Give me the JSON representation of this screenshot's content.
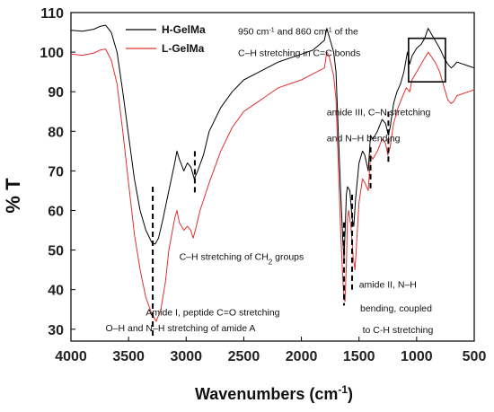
{
  "chart_data": {
    "type": "line",
    "xlabel_main": "Wavenumbers (cm",
    "xlabel_sup": "-1",
    "xlabel_end": ")",
    "ylabel": "% T",
    "xlim": [
      4000,
      500
    ],
    "ylim": [
      27,
      110
    ],
    "x_ticks": [
      4000,
      3500,
      3000,
      2500,
      2000,
      1500,
      1000,
      500
    ],
    "y_ticks": [
      30,
      40,
      50,
      60,
      70,
      80,
      90,
      100,
      110
    ],
    "legend_position": "top-left",
    "grid": false,
    "series": [
      {
        "name": "H-GelMa",
        "color": "#000000",
        "points": [
          [
            4000,
            105.5
          ],
          [
            3900,
            105.3
          ],
          [
            3800,
            105.8
          ],
          [
            3750,
            106.5
          ],
          [
            3700,
            106.8
          ],
          [
            3650,
            105
          ],
          [
            3600,
            100
          ],
          [
            3550,
            90
          ],
          [
            3500,
            79
          ],
          [
            3450,
            68
          ],
          [
            3400,
            60
          ],
          [
            3350,
            55
          ],
          [
            3300,
            52
          ],
          [
            3270,
            51.5
          ],
          [
            3240,
            53
          ],
          [
            3200,
            58
          ],
          [
            3150,
            65
          ],
          [
            3100,
            72
          ],
          [
            3080,
            75
          ],
          [
            3060,
            73
          ],
          [
            3020,
            70
          ],
          [
            2990,
            72
          ],
          [
            2960,
            71
          ],
          [
            2930,
            68
          ],
          [
            2900,
            70
          ],
          [
            2850,
            74
          ],
          [
            2800,
            80
          ],
          [
            2700,
            86
          ],
          [
            2600,
            90
          ],
          [
            2500,
            93
          ],
          [
            2400,
            94.5
          ],
          [
            2300,
            96
          ],
          [
            2200,
            97.5
          ],
          [
            2100,
            98.5
          ],
          [
            2000,
            99.5
          ],
          [
            1900,
            100.5
          ],
          [
            1800,
            103
          ],
          [
            1780,
            106
          ],
          [
            1760,
            104
          ],
          [
            1720,
            100
          ],
          [
            1700,
            95
          ],
          [
            1680,
            80
          ],
          [
            1660,
            65
          ],
          [
            1640,
            52
          ],
          [
            1630,
            48
          ],
          [
            1620,
            55
          ],
          [
            1610,
            64
          ],
          [
            1600,
            66
          ],
          [
            1580,
            65
          ],
          [
            1560,
            58
          ],
          [
            1545,
            56
          ],
          [
            1530,
            63
          ],
          [
            1500,
            72
          ],
          [
            1470,
            75
          ],
          [
            1450,
            74
          ],
          [
            1420,
            70
          ],
          [
            1400,
            79
          ],
          [
            1380,
            78
          ],
          [
            1340,
            80
          ],
          [
            1300,
            83
          ],
          [
            1270,
            82
          ],
          [
            1245,
            79
          ],
          [
            1230,
            81
          ],
          [
            1200,
            87
          ],
          [
            1170,
            90
          ],
          [
            1140,
            92
          ],
          [
            1110,
            95
          ],
          [
            1080,
            100
          ],
          [
            1060,
            97
          ],
          [
            1040,
            99
          ],
          [
            1000,
            101
          ],
          [
            960,
            102
          ],
          [
            930,
            103.5
          ],
          [
            900,
            106
          ],
          [
            870,
            104.5
          ],
          [
            840,
            103
          ],
          [
            800,
            101
          ],
          [
            760,
            98.5
          ],
          [
            730,
            97
          ],
          [
            700,
            96
          ],
          [
            680,
            96.5
          ],
          [
            650,
            97.5
          ],
          [
            600,
            97
          ],
          [
            550,
            96.5
          ],
          [
            500,
            96
          ]
        ]
      },
      {
        "name": "L-GelMa",
        "color": "#e03030",
        "points": [
          [
            4000,
            99.5
          ],
          [
            3900,
            99.2
          ],
          [
            3800,
            99.8
          ],
          [
            3750,
            100.5
          ],
          [
            3700,
            100.8
          ],
          [
            3650,
            98
          ],
          [
            3600,
            92
          ],
          [
            3550,
            80
          ],
          [
            3500,
            67
          ],
          [
            3450,
            54
          ],
          [
            3400,
            45
          ],
          [
            3350,
            38
          ],
          [
            3300,
            34
          ],
          [
            3260,
            32
          ],
          [
            3220,
            35
          ],
          [
            3180,
            42
          ],
          [
            3150,
            50
          ],
          [
            3100,
            58
          ],
          [
            3080,
            60
          ],
          [
            3060,
            57
          ],
          [
            3020,
            55
          ],
          [
            2990,
            56
          ],
          [
            2960,
            55
          ],
          [
            2940,
            53
          ],
          [
            2920,
            55
          ],
          [
            2880,
            60
          ],
          [
            2800,
            67
          ],
          [
            2700,
            75
          ],
          [
            2600,
            81
          ],
          [
            2500,
            85
          ],
          [
            2400,
            87
          ],
          [
            2300,
            89
          ],
          [
            2200,
            91
          ],
          [
            2100,
            92
          ],
          [
            2000,
            93
          ],
          [
            1900,
            94.5
          ],
          [
            1800,
            96
          ],
          [
            1780,
            100
          ],
          [
            1760,
            99
          ],
          [
            1720,
            94
          ],
          [
            1700,
            88
          ],
          [
            1680,
            72
          ],
          [
            1660,
            55
          ],
          [
            1640,
            42
          ],
          [
            1630,
            38
          ],
          [
            1622,
            37
          ],
          [
            1610,
            46
          ],
          [
            1600,
            58
          ],
          [
            1590,
            60
          ],
          [
            1570,
            56
          ],
          [
            1550,
            48
          ],
          [
            1535,
            45
          ],
          [
            1520,
            52
          ],
          [
            1500,
            62
          ],
          [
            1470,
            68
          ],
          [
            1450,
            67
          ],
          [
            1420,
            65
          ],
          [
            1400,
            74
          ],
          [
            1380,
            73
          ],
          [
            1340,
            75
          ],
          [
            1300,
            78
          ],
          [
            1270,
            77
          ],
          [
            1250,
            74
          ],
          [
            1230,
            76
          ],
          [
            1200,
            82
          ],
          [
            1160,
            86
          ],
          [
            1120,
            89
          ],
          [
            1090,
            91
          ],
          [
            1060,
            90
          ],
          [
            1040,
            93
          ],
          [
            1000,
            95
          ],
          [
            960,
            97
          ],
          [
            930,
            98.5
          ],
          [
            900,
            100
          ],
          [
            870,
            98.8
          ],
          [
            840,
            97.5
          ],
          [
            800,
            95
          ],
          [
            760,
            91
          ],
          [
            730,
            88
          ],
          [
            700,
            87
          ],
          [
            680,
            87.5
          ],
          [
            650,
            89
          ],
          [
            600,
            89.5
          ],
          [
            550,
            90
          ],
          [
            500,
            90.5
          ]
        ]
      }
    ],
    "markers": [
      {
        "x": 3290,
        "y1": 66,
        "y2": 28
      },
      {
        "x": 2925,
        "y1": 75,
        "y2": 64
      },
      {
        "x": 1630,
        "y1": 57,
        "y2": 36
      },
      {
        "x": 1560,
        "y1": 64,
        "y2": 40
      },
      {
        "x": 1245,
        "y1": 85,
        "y2": 72
      },
      {
        "x": 1400,
        "y1": 76,
        "y2": 65
      }
    ],
    "annotations": [
      {
        "text": "O–H and N–H stretching of amide A",
        "x": 3700,
        "y": 29.5
      },
      {
        "text": "C–H stretching of CH",
        "sub": "2",
        "text_after": " groups",
        "x": 3060,
        "y": 47.5
      },
      {
        "text": "Amide I, peptide C=O stretching",
        "x": 3350,
        "y": 33.5
      },
      {
        "text": "amide III, C–N stretching",
        "x": 1780,
        "y": 84
      },
      {
        "text": "and N–H bending",
        "x": 1780,
        "y": 77.5
      },
      {
        "text": "amide II, N–H",
        "x": 1500,
        "y": 40.5
      },
      {
        "text": "bending, coupled",
        "x": 1490,
        "y": 34.5
      },
      {
        "text": "to C-H stretching",
        "x": 1470,
        "y": 29
      }
    ],
    "top_annotation": {
      "line1_a": "950 cm",
      "line1_sup1": "-1",
      "line1_b": " and 860 cm",
      "line1_sup2": "-1",
      "line1_c": " of the",
      "line2": "C–H stretching in C=C bonds",
      "x": 2550,
      "y1": 104.5,
      "y2": 99
    },
    "highlight_box": {
      "x_from": 1070,
      "x_to": 750,
      "y_from": 103.5,
      "y_to": 92.5
    }
  }
}
